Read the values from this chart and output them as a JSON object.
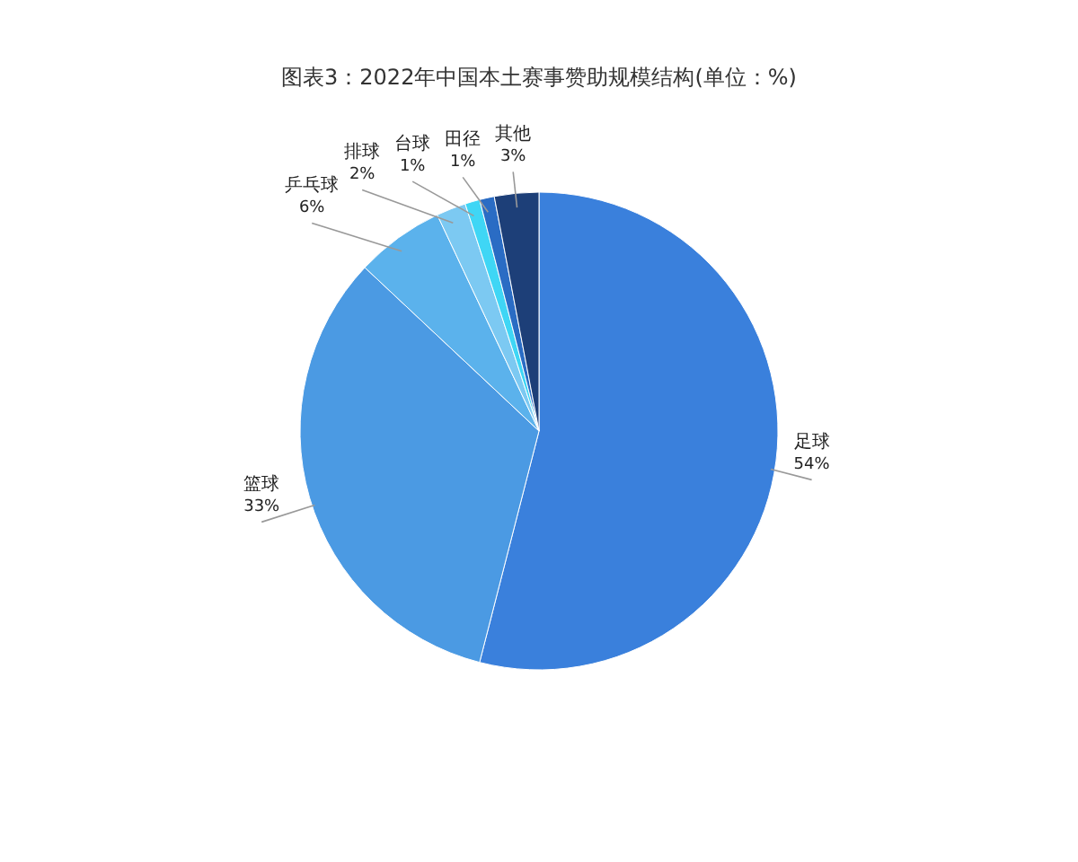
{
  "chart_data": {
    "type": "pie",
    "title": "图表3：2022年中国本土赛事赞助规模结构(单位：%)",
    "categories": [
      "足球",
      "篮球",
      "乒乓球",
      "排球",
      "台球",
      "田径",
      "其他"
    ],
    "values": [
      54,
      33,
      6,
      2,
      1,
      1,
      3
    ],
    "colors": [
      "#3a80dc",
      "#4b9ae3",
      "#5bb2ec",
      "#7cc9f2",
      "#3fd6f5",
      "#2a6cc4",
      "#1d3f78"
    ],
    "value_labels": [
      "54%",
      "33%",
      "6%",
      "2%",
      "1%",
      "1%",
      "3%"
    ],
    "legend": false
  }
}
